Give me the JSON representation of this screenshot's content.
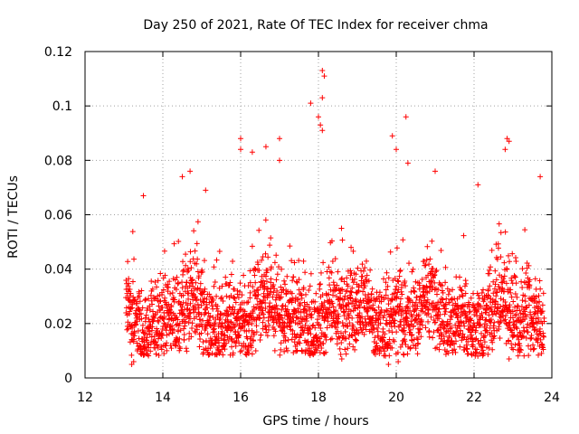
{
  "chart_data": {
    "type": "scatter",
    "title": "Day 250 of 2021, Rate Of TEC Index for receiver chma",
    "xlabel": "GPS time / hours",
    "ylabel": "ROTI / TECUs",
    "xlim": [
      12,
      24
    ],
    "ylim": [
      0,
      0.12
    ],
    "xticks": [
      12,
      14,
      16,
      18,
      20,
      22,
      24
    ],
    "yticks": [
      0,
      0.02,
      0.04,
      0.06,
      0.08,
      0.1,
      0.12
    ],
    "xtick_labels": [
      "12",
      "14",
      "16",
      "18",
      "20",
      "22",
      "24"
    ],
    "ytick_labels": [
      "0",
      "0.02",
      "0.04",
      "0.06",
      "0.08",
      "0.1",
      "0.12"
    ],
    "grid": true,
    "marker": "+",
    "color": "#ff0000",
    "series": [
      {
        "name": "ROTI",
        "x_range": [
          13.05,
          23.8
        ],
        "typical_range": [
          0.012,
          0.045
        ],
        "notable_points": [
          {
            "x": 18.1,
            "y": 0.113
          },
          {
            "x": 18.15,
            "y": 0.111
          },
          {
            "x": 18.1,
            "y": 0.103
          },
          {
            "x": 17.8,
            "y": 0.101
          },
          {
            "x": 18.0,
            "y": 0.096
          },
          {
            "x": 20.25,
            "y": 0.096
          },
          {
            "x": 18.05,
            "y": 0.093
          },
          {
            "x": 18.1,
            "y": 0.091
          },
          {
            "x": 19.9,
            "y": 0.089
          },
          {
            "x": 17.0,
            "y": 0.088
          },
          {
            "x": 22.85,
            "y": 0.088
          },
          {
            "x": 16.0,
            "y": 0.088
          },
          {
            "x": 22.9,
            "y": 0.087
          },
          {
            "x": 16.65,
            "y": 0.085
          },
          {
            "x": 16.0,
            "y": 0.084
          },
          {
            "x": 22.8,
            "y": 0.084
          },
          {
            "x": 16.3,
            "y": 0.083
          },
          {
            "x": 20.0,
            "y": 0.084
          },
          {
            "x": 17.0,
            "y": 0.08
          },
          {
            "x": 20.3,
            "y": 0.079
          },
          {
            "x": 14.7,
            "y": 0.076
          },
          {
            "x": 21.0,
            "y": 0.076
          },
          {
            "x": 23.7,
            "y": 0.074
          },
          {
            "x": 14.5,
            "y": 0.074
          },
          {
            "x": 22.1,
            "y": 0.071
          },
          {
            "x": 15.1,
            "y": 0.069
          },
          {
            "x": 13.5,
            "y": 0.067
          },
          {
            "x": 13.2,
            "y": 0.005
          },
          {
            "x": 13.25,
            "y": 0.006
          },
          {
            "x": 19.8,
            "y": 0.005
          },
          {
            "x": 20.05,
            "y": 0.006
          },
          {
            "x": 18.6,
            "y": 0.007
          },
          {
            "x": 22.9,
            "y": 0.007
          },
          {
            "x": 14.1,
            "y": 0.01
          },
          {
            "x": 16.2,
            "y": 0.01
          },
          {
            "x": 15.4,
            "y": 0.011
          }
        ]
      }
    ]
  }
}
